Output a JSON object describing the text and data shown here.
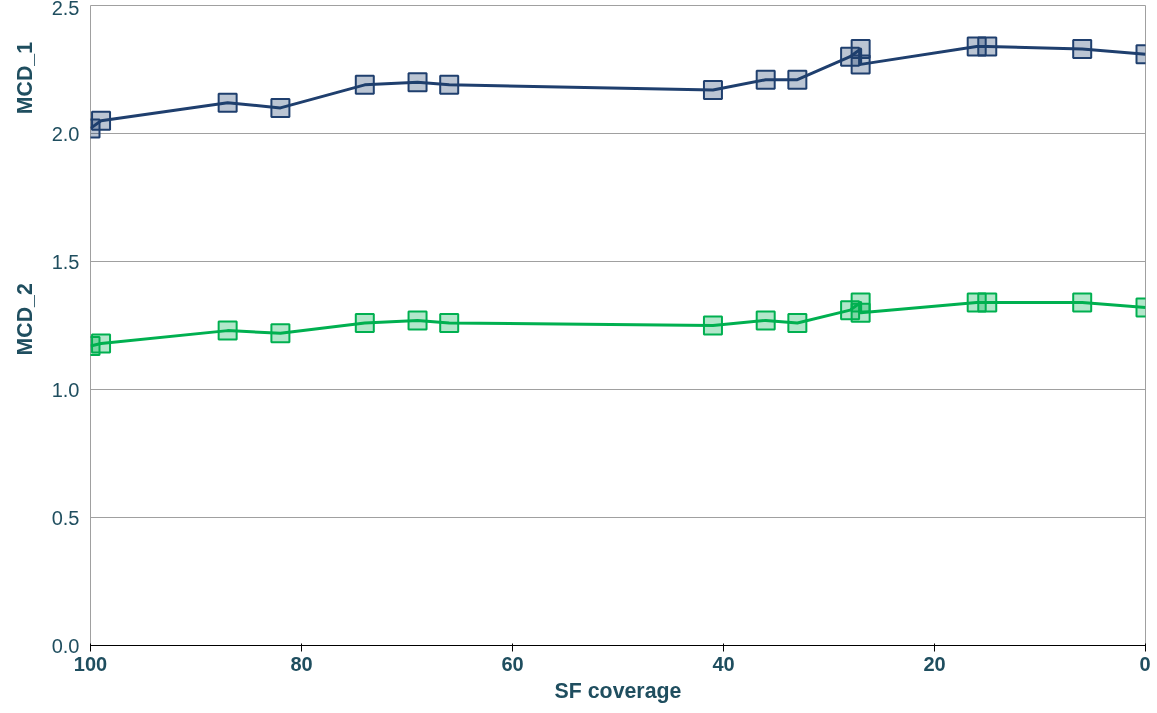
{
  "chart_data": {
    "type": "line",
    "xlabel": "SF coverage",
    "xlim": [
      100,
      0
    ],
    "xticks": [
      100,
      80,
      60,
      40,
      20,
      0
    ],
    "ylim": [
      0,
      2.5
    ],
    "yticks": [
      {
        "value": 0,
        "label": "0.0"
      },
      {
        "value": 0.5,
        "label": "0.5"
      },
      {
        "value": 1,
        "label": "1.0"
      },
      {
        "value": 1.5,
        "label": "1.5"
      },
      {
        "value": 2,
        "label": "2.0"
      },
      {
        "value": 2.5,
        "label": "2.5"
      }
    ],
    "grid": "y",
    "marker": "square",
    "x": [
      100,
      99,
      87,
      82,
      74,
      69,
      66,
      41,
      36,
      33,
      28,
      27,
      27,
      16,
      15,
      6,
      0
    ],
    "series": [
      {
        "name": "MCD_1",
        "color": "#1f3f6e",
        "values": [
          2.02,
          2.05,
          2.12,
          2.1,
          2.19,
          2.2,
          2.19,
          2.17,
          2.21,
          2.21,
          2.3,
          2.33,
          2.27,
          2.34,
          2.34,
          2.33,
          2.31
        ]
      },
      {
        "name": "MCD_2",
        "color": "#00b050",
        "values": [
          1.17,
          1.18,
          1.23,
          1.22,
          1.26,
          1.27,
          1.26,
          1.25,
          1.27,
          1.26,
          1.31,
          1.34,
          1.3,
          1.34,
          1.34,
          1.34,
          1.32
        ]
      }
    ]
  }
}
